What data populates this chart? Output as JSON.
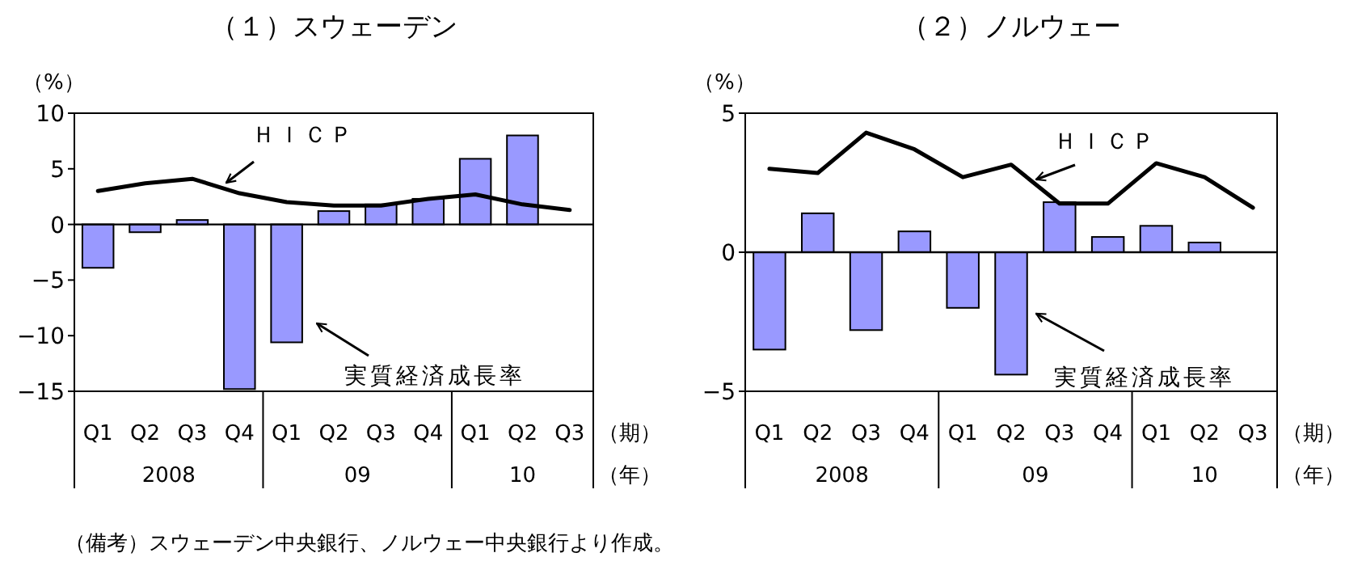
{
  "chart_data": [
    {
      "type": "bar",
      "title": "（１）スウェーデン",
      "ylabel": "（%）",
      "xlabel": "（期）",
      "categories": [
        "Q1",
        "Q2",
        "Q3",
        "Q4",
        "Q1",
        "Q2",
        "Q3",
        "Q4",
        "Q1",
        "Q2",
        "Q3"
      ],
      "ylim": [
        -15,
        10
      ],
      "yticks": [
        -15,
        -10,
        -5,
        0,
        5,
        10
      ],
      "series": [
        {
          "name": "実質経済成長率",
          "color": "#9999ff",
          "values": [
            -3.9,
            -0.7,
            0.4,
            -14.8,
            -10.6,
            1.2,
            1.8,
            2.3,
            5.9,
            8.0,
            null
          ]
        },
        {
          "name": "ＨＩＣＰ",
          "type": "line",
          "color": "#000000",
          "values": [
            3.0,
            3.7,
            4.1,
            2.8,
            2.0,
            1.7,
            1.7,
            2.3,
            2.7,
            1.8,
            1.3
          ]
        }
      ],
      "annotations": [
        "2008",
        "09",
        "10",
        "（年）",
        "（備考）スウェーデン中央銀行、ノルウェー中央銀行より作成。"
      ]
    },
    {
      "type": "bar",
      "title": "（２）ノルウェー",
      "ylabel": "（%）",
      "xlabel": "（期）",
      "categories": [
        "Q1",
        "Q2",
        "Q3",
        "Q4",
        "Q1",
        "Q2",
        "Q3",
        "Q4",
        "Q1",
        "Q2",
        "Q3"
      ],
      "ylim": [
        -5,
        5
      ],
      "yticks": [
        -5,
        0,
        5
      ],
      "series": [
        {
          "name": "実質経済成長率",
          "color": "#9999ff",
          "values": [
            -3.5,
            1.4,
            -2.8,
            0.75,
            -2.0,
            -4.4,
            1.8,
            0.55,
            0.95,
            0.35,
            null
          ]
        },
        {
          "name": "ＨＩＣＰ",
          "type": "line",
          "color": "#000000",
          "values": [
            3.0,
            2.85,
            4.3,
            3.7,
            2.7,
            3.15,
            1.75,
            1.75,
            3.2,
            2.7,
            1.6
          ]
        }
      ],
      "annotations": [
        "2008",
        "09",
        "10",
        "（年）"
      ]
    }
  ]
}
